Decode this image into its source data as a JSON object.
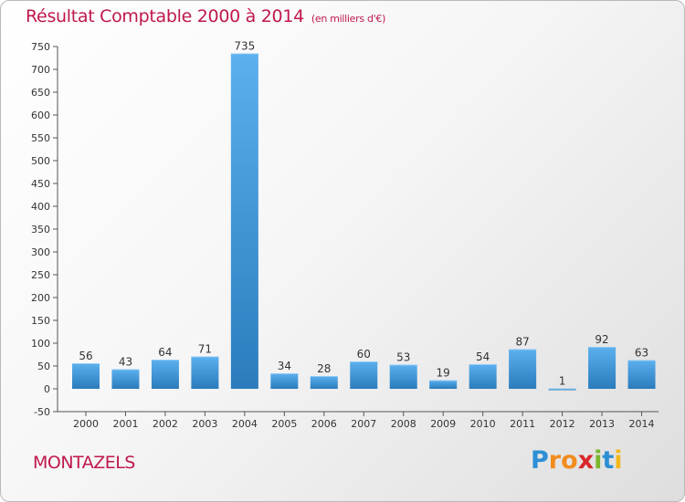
{
  "title": "Résultat Comptable 2000 à 2014",
  "unit_label": "(en milliers d'€)",
  "commune": "MONTAZELS",
  "brand": {
    "name": "Proxiti",
    "letters": [
      "P",
      "r",
      "o",
      "x",
      "i",
      "t",
      "i"
    ]
  },
  "colors": {
    "title": "#c0184b",
    "bar_top": "#5cb0ee",
    "bar_bottom": "#2a7cbd",
    "brand_letters": [
      "#2d8fd5",
      "#f28c1f",
      "#f28c1f",
      "#d9262a",
      "#7ab62f",
      "#2d8fd5",
      "#f2b81f"
    ]
  },
  "chart_data": {
    "type": "bar",
    "title": "Résultat Comptable 2000 à 2014 (en milliers d'€)",
    "xlabel": "",
    "ylabel": "",
    "categories": [
      "2000",
      "2001",
      "2002",
      "2003",
      "2004",
      "2005",
      "2006",
      "2007",
      "2008",
      "2009",
      "2010",
      "2011",
      "2012",
      "2013",
      "2014"
    ],
    "values": [
      56,
      43,
      64,
      71,
      735,
      34,
      28,
      60,
      53,
      19,
      54,
      87,
      1,
      92,
      63
    ],
    "ylim": [
      -50,
      750
    ],
    "yticks": [
      -50,
      0,
      50,
      100,
      150,
      200,
      250,
      300,
      350,
      400,
      450,
      500,
      550,
      600,
      650,
      700,
      750
    ],
    "grid": false,
    "legend": "none"
  }
}
